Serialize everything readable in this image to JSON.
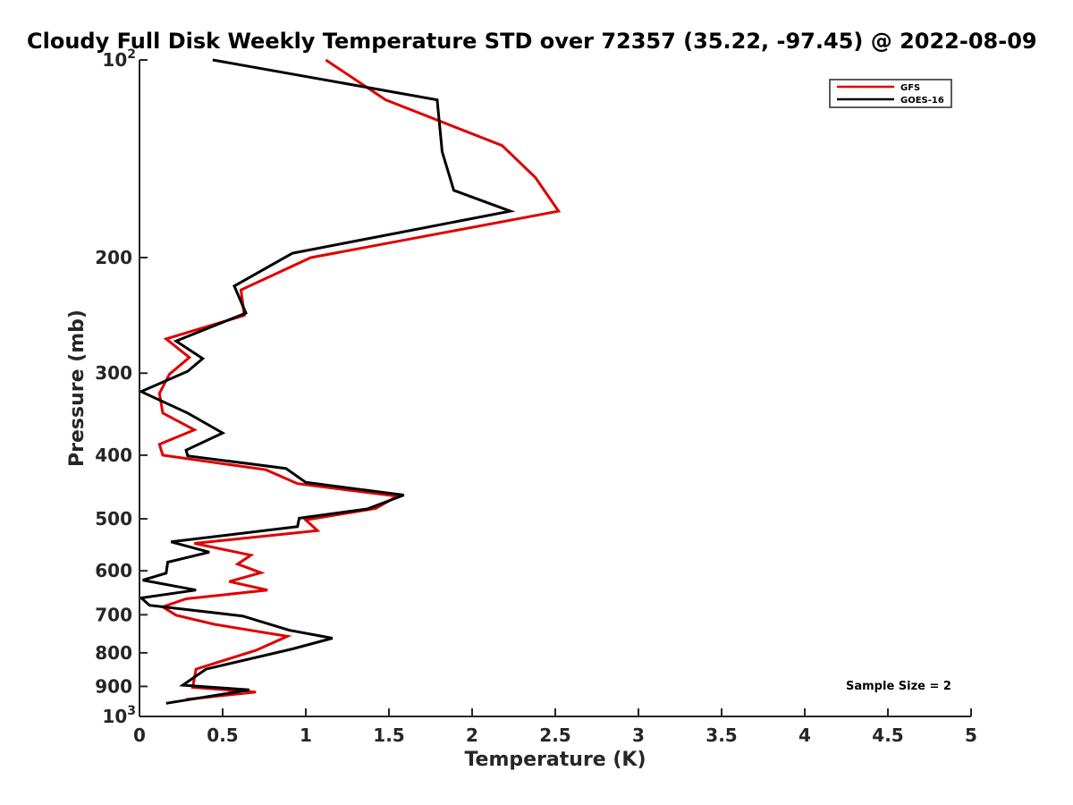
{
  "chart_data": {
    "type": "line",
    "title": "Cloudy Full Disk Weekly Temperature STD over 72357 (35.22, -97.45) @ 2022-08-09",
    "xlabel": "Temperature (K)",
    "ylabel": "Pressure (mb)",
    "xlim": [
      0,
      5
    ],
    "ylim": [
      100,
      1000
    ],
    "yscale": "log",
    "y_reversed": true,
    "grid": false,
    "legend_position": "top-right",
    "x_ticks": [
      "0",
      "0.5",
      "1",
      "1.5",
      "2",
      "2.5",
      "3",
      "3.5",
      "4",
      "4.5",
      "5"
    ],
    "x_tick_values": [
      0,
      0.5,
      1,
      1.5,
      2,
      2.5,
      3,
      3.5,
      4,
      4.5,
      5
    ],
    "y_ticks": [
      {
        "value": 100,
        "base": "10",
        "exp": "2"
      },
      {
        "value": 200,
        "label": "200"
      },
      {
        "value": 300,
        "label": "300"
      },
      {
        "value": 400,
        "label": "400"
      },
      {
        "value": 500,
        "label": "500"
      },
      {
        "value": 600,
        "label": "600"
      },
      {
        "value": 700,
        "label": "700"
      },
      {
        "value": 800,
        "label": "800"
      },
      {
        "value": 900,
        "label": "900"
      },
      {
        "value": 1000,
        "base": "10",
        "exp": "3"
      }
    ],
    "annotation": "Sample Size = 2",
    "series": [
      {
        "name": "GFS",
        "color": "#e00000",
        "points": [
          [
            1.12,
            100
          ],
          [
            1.48,
            115
          ],
          [
            2.18,
            135
          ],
          [
            2.38,
            151
          ],
          [
            2.52,
            170
          ],
          [
            1.03,
            200
          ],
          [
            0.61,
            224
          ],
          [
            0.63,
            245
          ],
          [
            0.16,
            266
          ],
          [
            0.3,
            284
          ],
          [
            0.18,
            301
          ],
          [
            0.12,
            322
          ],
          [
            0.14,
            345
          ],
          [
            0.33,
            366
          ],
          [
            0.12,
            385
          ],
          [
            0.14,
            400
          ],
          [
            0.76,
            421
          ],
          [
            0.95,
            442
          ],
          [
            1.55,
            462
          ],
          [
            1.42,
            482
          ],
          [
            1.0,
            502
          ],
          [
            1.07,
            521
          ],
          [
            0.33,
            545
          ],
          [
            0.67,
            568
          ],
          [
            0.59,
            586
          ],
          [
            0.73,
            604
          ],
          [
            0.54,
            623
          ],
          [
            0.77,
            642
          ],
          [
            0.28,
            662
          ],
          [
            0.14,
            681
          ],
          [
            0.22,
            701
          ],
          [
            0.45,
            724
          ],
          [
            0.89,
            755
          ],
          [
            0.7,
            793
          ],
          [
            0.34,
            847
          ],
          [
            0.32,
            903
          ],
          [
            0.7,
            918
          ],
          [
            0.28,
            942
          ]
        ]
      },
      {
        "name": "GOES-16",
        "color": "#000000",
        "points": [
          [
            0.44,
            100
          ],
          [
            1.79,
            115
          ],
          [
            1.82,
            138
          ],
          [
            1.89,
            158
          ],
          [
            2.23,
            170
          ],
          [
            0.92,
            197
          ],
          [
            0.57,
            221
          ],
          [
            0.64,
            243
          ],
          [
            0.22,
            268
          ],
          [
            0.38,
            285
          ],
          [
            0.29,
            298
          ],
          [
            0.01,
            320
          ],
          [
            0.29,
            345
          ],
          [
            0.5,
            370
          ],
          [
            0.28,
            393
          ],
          [
            0.29,
            401
          ],
          [
            0.88,
            419
          ],
          [
            1.0,
            440
          ],
          [
            1.59,
            460
          ],
          [
            1.37,
            483
          ],
          [
            0.96,
            499
          ],
          [
            0.95,
            514
          ],
          [
            0.19,
            542
          ],
          [
            0.42,
            562
          ],
          [
            0.17,
            582
          ],
          [
            0.16,
            605
          ],
          [
            0.02,
            620
          ],
          [
            0.34,
            642
          ],
          [
            0.01,
            660
          ],
          [
            0.06,
            677
          ],
          [
            0.62,
            703
          ],
          [
            0.9,
            739
          ],
          [
            1.16,
            760
          ],
          [
            0.92,
            789
          ],
          [
            0.4,
            847
          ],
          [
            0.26,
            896
          ],
          [
            0.66,
            911
          ],
          [
            0.16,
            955
          ]
        ]
      }
    ]
  }
}
